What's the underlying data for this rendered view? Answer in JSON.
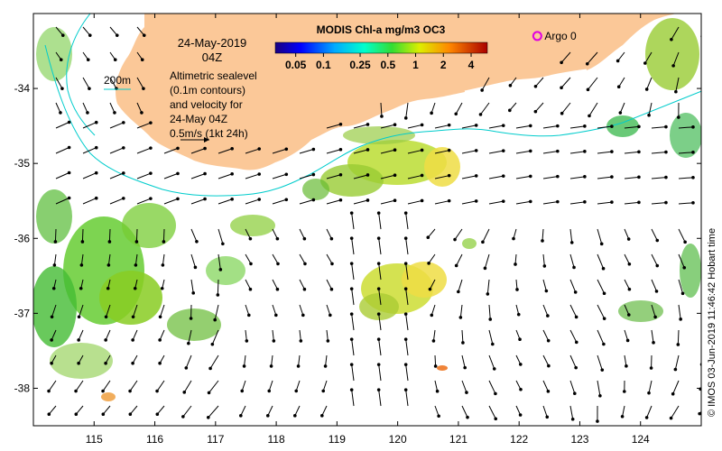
{
  "map": {
    "date": "24-May-2019",
    "time": "04Z",
    "depth_label": "200m",
    "sealevel_note": [
      "Altimetric sealevel",
      "(0.1m contours)",
      "and velocity for",
      "24-May 04Z",
      "0.5m/s (1kt 24h)"
    ],
    "colorbar": {
      "title": "MODIS Chl-a mg/m3 OC3",
      "ticks": [
        "0.05",
        "0.1",
        "0.25",
        "0.5",
        "1",
        "2",
        "4"
      ],
      "tick_values": [
        0.05,
        0.1,
        0.25,
        0.5,
        1,
        2,
        4
      ],
      "min": 0.03,
      "max": 6
    },
    "argo_label": "Argo 0",
    "argo_position": {
      "lon": 122.3,
      "lat": -33.3
    },
    "credit": "© IMOS 03-Jun-2019 11:46:42 Hobart time",
    "x_ticks": [
      "115",
      "116",
      "117",
      "118",
      "119",
      "120",
      "121",
      "122",
      "123",
      "124"
    ],
    "y_ticks": [
      "-34",
      "-35",
      "-36",
      "-37",
      "-38"
    ],
    "extent": {
      "lon_min": 114.0,
      "lon_max": 125.0,
      "lat_min": -38.5,
      "lat_max": -33.0
    },
    "colors": {
      "land": "#fbc898",
      "contour": "#00cccc",
      "argo": "#e000e0",
      "arrow": "#000000"
    }
  }
}
